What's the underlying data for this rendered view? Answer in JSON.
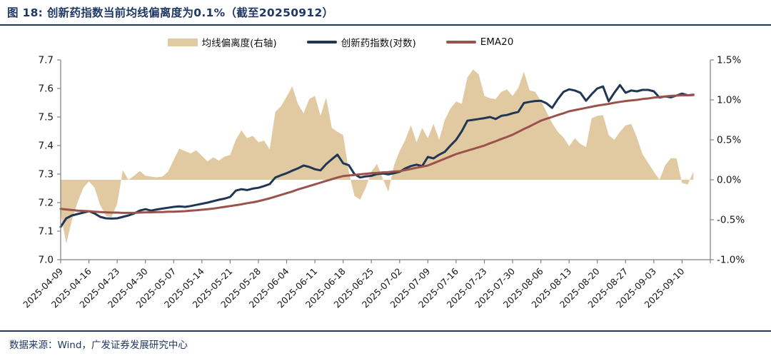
{
  "figure": {
    "title": "图 18: 创新药指数当前均线偏离度为0.1%（截至20250912）",
    "source": "数据来源：Wind，广发证券发展研究中心"
  },
  "colors": {
    "accent": "#1F3864",
    "axis": "#808080",
    "tick_text": "#141414",
    "area": "#E1C9A2",
    "index_line": "#1F3654",
    "ema_line": "#9C524C"
  },
  "legend": [
    {
      "label": "均线偏离度(右轴)",
      "swatch": "area",
      "color": "#E1C9A2"
    },
    {
      "label": "创新药指数(对数)",
      "swatch": "line",
      "color": "#1F3654"
    },
    {
      "label": "EMA20",
      "swatch": "line",
      "color": "#9C524C"
    }
  ],
  "chart_data": {
    "type": "combo-line-area",
    "title": "创新药指数当前均线偏离度为0.1%（截至20250912）",
    "grid": false,
    "legend_position": "top-center",
    "points_per_week": 5,
    "x_labels": [
      "2025-04-09",
      "2025-04-16",
      "2025-04-23",
      "2025-04-30",
      "2025-05-07",
      "2025-05-14",
      "2025-05-21",
      "2025-05-28",
      "2025-06-04",
      "2025-06-11",
      "2025-06-18",
      "2025-06-25",
      "2025-07-02",
      "2025-07-09",
      "2025-07-16",
      "2025-07-23",
      "2025-07-30",
      "2025-08-06",
      "2025-08-13",
      "2025-08-20",
      "2025-08-27",
      "2025-09-03",
      "2025-09-10"
    ],
    "left_axis": {
      "min": 7.0,
      "max": 7.7,
      "ticks": [
        "7.7",
        "7.6",
        "7.5",
        "7.4",
        "7.3",
        "7.2",
        "7.1",
        "7.0"
      ]
    },
    "right_axis": {
      "min": -1.0,
      "max": 1.5,
      "ticks": [
        "1.5%",
        "1.0%",
        "0.5%",
        "0.0%",
        "-0.5%",
        "-1.0%"
      ]
    },
    "series": [
      {
        "id": "deviation",
        "name": "均线偏离度(右轴)",
        "type": "area",
        "axis": "right",
        "unit": "%",
        "color": "#E1C9A2",
        "values": [
          -0.42,
          -0.8,
          -0.5,
          -0.28,
          -0.1,
          -0.02,
          -0.1,
          -0.32,
          -0.45,
          -0.47,
          -0.3,
          0.12,
          0,
          0.05,
          0.11,
          0.05,
          0.04,
          0.03,
          0.04,
          0.1,
          0.25,
          0.39,
          0.36,
          0.33,
          0.37,
          0.3,
          0.23,
          0.28,
          0.24,
          0.29,
          0.31,
          0.5,
          0.62,
          0.52,
          0.55,
          0.47,
          0.49,
          0.38,
          0.85,
          0.92,
          1.04,
          1.17,
          0.95,
          0.83,
          1.01,
          1.05,
          0.8,
          1.03,
          0.65,
          0.6,
          0.56,
          0.1,
          -0.2,
          -0.25,
          -0.1,
          0.1,
          0.2,
          0.02,
          -0.15,
          0.18,
          0.36,
          0.5,
          0.68,
          0.47,
          0.65,
          0.52,
          0.7,
          0.5,
          0.75,
          0.89,
          0.98,
          0.95,
          1.28,
          1.38,
          1.32,
          1.05,
          1.02,
          1.01,
          1.1,
          1.13,
          1.05,
          1.15,
          1.35,
          1.12,
          1.1,
          0.99,
          0.85,
          0.71,
          0.6,
          0.53,
          0.42,
          0.52,
          0.45,
          0.41,
          0.77,
          0.8,
          0.81,
          0.56,
          0.5,
          0.6,
          0.68,
          0.7,
          0.53,
          0.32,
          0.21,
          0.1,
          0,
          0.18,
          0.27,
          0.27,
          -0.04,
          -0.06,
          0.1
        ]
      },
      {
        "id": "index",
        "name": "创新药指数(对数)",
        "type": "line",
        "axis": "left",
        "color": "#1F3654",
        "values": [
          7.115,
          7.145,
          7.155,
          7.16,
          7.165,
          7.17,
          7.162,
          7.15,
          7.145,
          7.144,
          7.145,
          7.15,
          7.155,
          7.162,
          7.172,
          7.177,
          7.172,
          7.176,
          7.179,
          7.182,
          7.185,
          7.187,
          7.185,
          7.188,
          7.192,
          7.196,
          7.2,
          7.205,
          7.21,
          7.214,
          7.22,
          7.242,
          7.247,
          7.244,
          7.249,
          7.252,
          7.258,
          7.265,
          7.288,
          7.296,
          7.303,
          7.312,
          7.32,
          7.33,
          7.325,
          7.317,
          7.313,
          7.335,
          7.352,
          7.368,
          7.338,
          7.331,
          7.3,
          7.288,
          7.292,
          7.294,
          7.3,
          7.302,
          7.299,
          7.303,
          7.308,
          7.32,
          7.328,
          7.333,
          7.328,
          7.36,
          7.355,
          7.368,
          7.378,
          7.4,
          7.42,
          7.45,
          7.487,
          7.49,
          7.493,
          7.496,
          7.5,
          7.493,
          7.504,
          7.507,
          7.513,
          7.518,
          7.549,
          7.553,
          7.556,
          7.557,
          7.548,
          7.532,
          7.562,
          7.588,
          7.597,
          7.593,
          7.585,
          7.557,
          7.58,
          7.6,
          7.607,
          7.555,
          7.585,
          7.612,
          7.585,
          7.593,
          7.59,
          7.595,
          7.595,
          7.59,
          7.568,
          7.572,
          7.569,
          7.575,
          7.582,
          7.576,
          7.578
        ]
      },
      {
        "id": "ema20",
        "name": "EMA20",
        "type": "line",
        "axis": "left",
        "color": "#9C524C",
        "values": [
          7.178,
          7.176,
          7.174,
          7.172,
          7.171,
          7.17,
          7.168,
          7.167,
          7.166,
          7.165,
          7.165,
          7.164,
          7.164,
          7.164,
          7.165,
          7.166,
          7.166,
          7.167,
          7.167,
          7.168,
          7.168,
          7.169,
          7.17,
          7.172,
          7.173,
          7.175,
          7.177,
          7.179,
          7.182,
          7.185,
          7.188,
          7.191,
          7.194,
          7.198,
          7.201,
          7.205,
          7.21,
          7.215,
          7.221,
          7.227,
          7.233,
          7.239,
          7.246,
          7.252,
          7.258,
          7.264,
          7.27,
          7.276,
          7.282,
          7.288,
          7.293,
          7.295,
          7.297,
          7.299,
          7.301,
          7.303,
          7.304,
          7.306,
          7.307,
          7.309,
          7.31,
          7.314,
          7.318,
          7.322,
          7.326,
          7.33,
          7.338,
          7.346,
          7.354,
          7.362,
          7.37,
          7.376,
          7.382,
          7.388,
          7.394,
          7.4,
          7.408,
          7.415,
          7.423,
          7.43,
          7.438,
          7.448,
          7.458,
          7.467,
          7.477,
          7.487,
          7.494,
          7.5,
          7.507,
          7.513,
          7.52,
          7.524,
          7.528,
          7.532,
          7.536,
          7.54,
          7.543,
          7.546,
          7.55,
          7.553,
          7.556,
          7.558,
          7.56,
          7.563,
          7.565,
          7.568,
          7.57,
          7.572,
          7.574,
          7.575,
          7.576,
          7.576,
          7.577
        ]
      }
    ]
  }
}
